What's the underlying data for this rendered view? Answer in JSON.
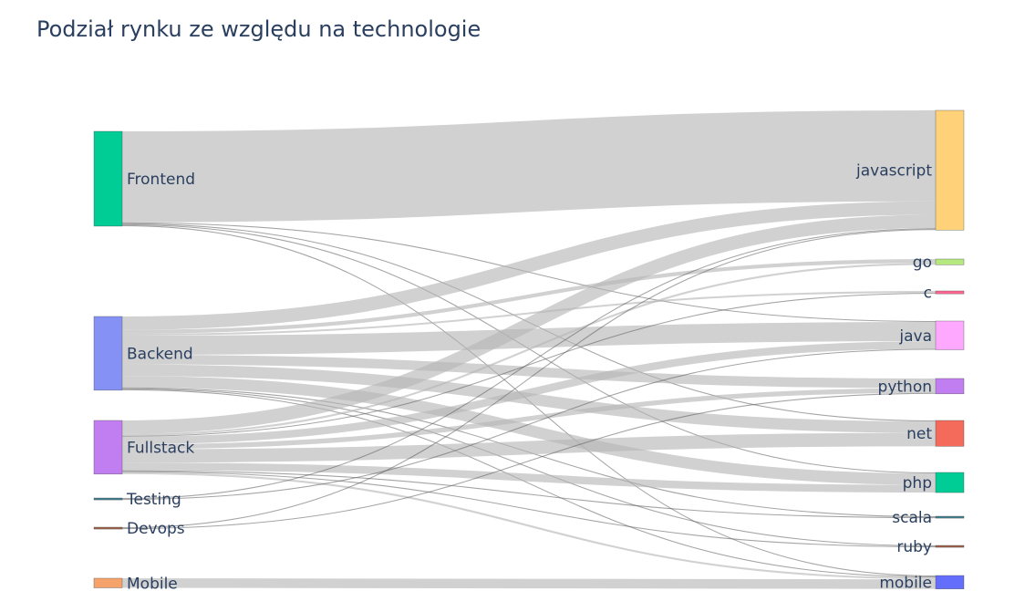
{
  "title": "Podział rynku ze względu na technologie",
  "chart_data": {
    "type": "sankey",
    "sources": [
      {
        "id": "frontend",
        "label": "Frontend",
        "color": "#00cc96"
      },
      {
        "id": "backend",
        "label": "Backend",
        "color": "#8591f5"
      },
      {
        "id": "fullstack",
        "label": "Fullstack",
        "color": "#c17ef0"
      },
      {
        "id": "testing",
        "label": "Testing",
        "color": "#3f7f8e"
      },
      {
        "id": "devops",
        "label": "Devops",
        "color": "#a0614a"
      },
      {
        "id": "mobile_s",
        "label": "Mobile",
        "color": "#f6a26b"
      }
    ],
    "targets": [
      {
        "id": "javascript",
        "label": "javascript",
        "color": "#ffd27a"
      },
      {
        "id": "go",
        "label": "go",
        "color": "#b6e880"
      },
      {
        "id": "c",
        "label": "c",
        "color": "#ff6692"
      },
      {
        "id": "java",
        "label": "java",
        "color": "#ffa8ff"
      },
      {
        "id": "python",
        "label": "python",
        "color": "#c17ef0"
      },
      {
        "id": "net",
        "label": "net",
        "color": "#f46a5b"
      },
      {
        "id": "php",
        "label": "php",
        "color": "#00cc96"
      },
      {
        "id": "scala",
        "label": "scala",
        "color": "#3f7f8e"
      },
      {
        "id": "ruby",
        "label": "ruby",
        "color": "#a0614a"
      },
      {
        "id": "mobile_t",
        "label": "mobile",
        "color": "#636efa"
      }
    ],
    "links": [
      {
        "source": "frontend",
        "target": "javascript",
        "value": 95
      },
      {
        "source": "frontend",
        "target": "java",
        "value": 1
      },
      {
        "source": "frontend",
        "target": "net",
        "value": 1
      },
      {
        "source": "frontend",
        "target": "php",
        "value": 1
      },
      {
        "source": "frontend",
        "target": "mobile_t",
        "value": 1
      },
      {
        "source": "backend",
        "target": "javascript",
        "value": 14
      },
      {
        "source": "backend",
        "target": "go",
        "value": 4
      },
      {
        "source": "backend",
        "target": "c",
        "value": 2
      },
      {
        "source": "backend",
        "target": "java",
        "value": 20
      },
      {
        "source": "backend",
        "target": "python",
        "value": 10
      },
      {
        "source": "backend",
        "target": "net",
        "value": 12
      },
      {
        "source": "backend",
        "target": "php",
        "value": 12
      },
      {
        "source": "backend",
        "target": "scala",
        "value": 1
      },
      {
        "source": "backend",
        "target": "ruby",
        "value": 1
      },
      {
        "source": "backend",
        "target": "mobile_t",
        "value": 1
      },
      {
        "source": "fullstack",
        "target": "javascript",
        "value": 14
      },
      {
        "source": "fullstack",
        "target": "go",
        "value": 2
      },
      {
        "source": "fullstack",
        "target": "c",
        "value": 1
      },
      {
        "source": "fullstack",
        "target": "java",
        "value": 8
      },
      {
        "source": "fullstack",
        "target": "python",
        "value": 5
      },
      {
        "source": "fullstack",
        "target": "net",
        "value": 14
      },
      {
        "source": "fullstack",
        "target": "php",
        "value": 8
      },
      {
        "source": "fullstack",
        "target": "scala",
        "value": 1
      },
      {
        "source": "fullstack",
        "target": "ruby",
        "value": 1
      },
      {
        "source": "fullstack",
        "target": "mobile_t",
        "value": 2
      },
      {
        "source": "testing",
        "target": "javascript",
        "value": 1
      },
      {
        "source": "testing",
        "target": "java",
        "value": 1
      },
      {
        "source": "devops",
        "target": "javascript",
        "value": 1
      },
      {
        "source": "devops",
        "target": "python",
        "value": 1
      },
      {
        "source": "mobile_s",
        "target": "mobile_t",
        "value": 10
      }
    ]
  }
}
